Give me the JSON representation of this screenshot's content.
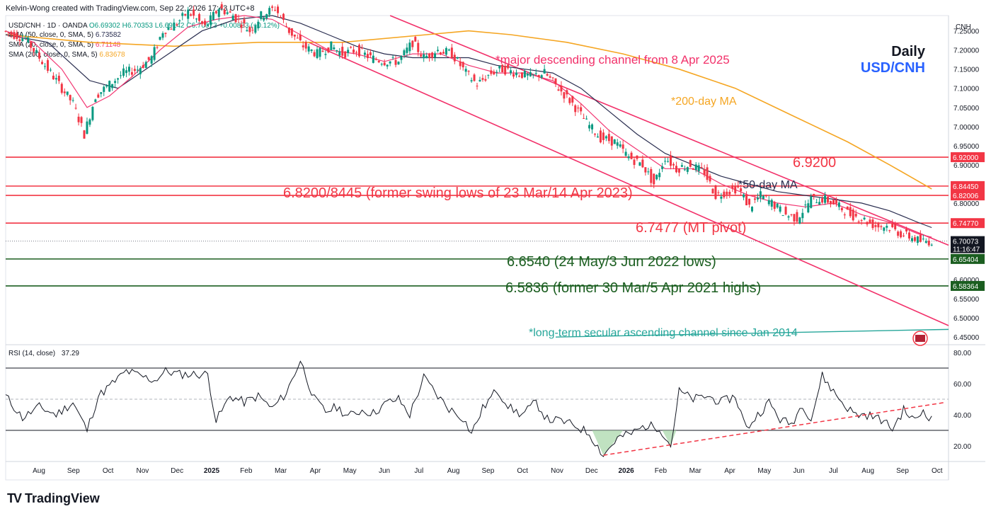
{
  "header": {
    "attribution": "Kelvin-Wong created with TradingView.com, Sep 22, 2026 17:43 UTC+8"
  },
  "legend": {
    "symbol": "USD/CNH · 1D · OANDA",
    "ohlc": "O6.69302 H6.70353 L6.69142 C6.70073 +0.00833 (+0.12%)",
    "sma50": {
      "label": "SMA (50, close, 0, SMA, 5)",
      "value": "6.73582"
    },
    "sma20": {
      "label": "SMA (20, close, 0, SMA, 5)",
      "value": "6.71148"
    },
    "sma200": {
      "label": "SMA (200, close, 0, SMA, 5)",
      "value": "6.83678"
    },
    "rsi": {
      "label": "RSI (14, close)",
      "value": "37.29"
    }
  },
  "title": {
    "timeframe": "Daily",
    "pair": "USD/CNH"
  },
  "axis": {
    "currency": "CNH"
  },
  "colors": {
    "price_up": "#089981",
    "price_down": "#f23645",
    "sma20": "#f23672",
    "sma50": "#2a2e50",
    "sma200": "#f5a623",
    "resistance": "#f23645",
    "support": "#1b5e20",
    "channel": "#f2316a",
    "secular": "#26a69a",
    "rsi_line": "#131722",
    "title_pair": "#2962ff"
  },
  "annotations": {
    "channel": "*major descending channel from 8 Apr 2025",
    "ma200": "*200-day MA",
    "ma50": "*50-day MA",
    "level_6920": "6.9200",
    "level_6820": "6.8200/8445 (former swing lows of 23 Mar/14 Apr 2023)",
    "level_6747": "6.7477 (MT pivot)",
    "level_6654": "6.6540 (24 May/3 Jun 2022 lows)",
    "level_6583": "6.5836 (former 30 Mar/5 Apr 2021 highs)",
    "secular": "*long-term secular ascending channel since Jan 2014"
  },
  "chart_data": {
    "type": "candlestick",
    "ylim": [
      6.43,
      7.29
    ],
    "y_ticks": [
      "7.25000",
      "7.20000",
      "7.15000",
      "7.10000",
      "7.05000",
      "7.00000",
      "6.95000",
      "6.90000",
      "6.85000",
      "6.80000",
      "6.75000",
      "6.70000",
      "6.65000",
      "6.60000",
      "6.55000",
      "6.50000",
      "6.45000"
    ],
    "x_ticks": [
      "Aug",
      "Sep",
      "Oct",
      "Nov",
      "Dec",
      "2025",
      "Feb",
      "Mar",
      "Apr",
      "May",
      "Jun",
      "Jul",
      "Aug",
      "Sep",
      "Oct",
      "Nov",
      "Dec",
      "2026",
      "Feb",
      "Mar",
      "Apr",
      "May",
      "Jun",
      "Jul",
      "Aug",
      "Sep",
      "Oct"
    ],
    "price_path": [
      [
        0,
        7.25
      ],
      [
        8,
        7.23
      ],
      [
        14,
        7.17
      ],
      [
        19,
        7.12
      ],
      [
        25,
        7.06
      ],
      [
        29,
        6.98
      ],
      [
        33,
        7.08
      ],
      [
        38,
        7.11
      ],
      [
        43,
        7.14
      ],
      [
        48,
        7.15
      ],
      [
        53,
        7.18
      ],
      [
        57,
        7.25
      ],
      [
        62,
        7.27
      ],
      [
        66,
        7.3
      ],
      [
        72,
        7.26
      ],
      [
        77,
        7.31
      ],
      [
        82,
        7.29
      ],
      [
        88,
        7.25
      ],
      [
        92,
        7.29
      ],
      [
        97,
        7.31
      ],
      [
        102,
        7.25
      ],
      [
        107,
        7.21
      ],
      [
        112,
        7.19
      ],
      [
        117,
        7.21
      ],
      [
        121,
        7.19
      ],
      [
        126,
        7.2
      ],
      [
        131,
        7.18
      ],
      [
        136,
        7.17
      ],
      [
        141,
        7.17
      ],
      [
        146,
        7.22
      ],
      [
        150,
        7.18
      ],
      [
        155,
        7.2
      ],
      [
        160,
        7.19
      ],
      [
        165,
        7.14
      ],
      [
        169,
        7.11
      ],
      [
        174,
        7.14
      ],
      [
        178,
        7.15
      ],
      [
        183,
        7.14
      ],
      [
        188,
        7.13
      ],
      [
        193,
        7.14
      ],
      [
        198,
        7.1
      ],
      [
        203,
        7.06
      ],
      [
        208,
        7.01
      ],
      [
        213,
        6.97
      ],
      [
        218,
        6.96
      ],
      [
        223,
        6.92
      ],
      [
        228,
        6.9
      ],
      [
        232,
        6.85
      ],
      [
        236,
        6.92
      ],
      [
        240,
        6.89
      ],
      [
        245,
        6.9
      ],
      [
        250,
        6.88
      ],
      [
        254,
        6.82
      ],
      [
        258,
        6.83
      ],
      [
        262,
        6.84
      ],
      [
        266,
        6.79
      ],
      [
        270,
        6.82
      ],
      [
        274,
        6.8
      ],
      [
        279,
        6.77
      ],
      [
        283,
        6.76
      ],
      [
        288,
        6.81
      ],
      [
        293,
        6.81
      ],
      [
        298,
        6.79
      ],
      [
        302,
        6.77
      ],
      [
        306,
        6.76
      ],
      [
        311,
        6.74
      ],
      [
        315,
        6.74
      ],
      [
        320,
        6.72
      ],
      [
        324,
        6.71
      ],
      [
        327,
        6.7
      ],
      [
        330,
        6.7
      ]
    ],
    "sma20_path": [
      [
        0,
        7.25
      ],
      [
        10,
        7.22
      ],
      [
        20,
        7.15
      ],
      [
        29,
        7.05
      ],
      [
        37,
        7.08
      ],
      [
        45,
        7.13
      ],
      [
        55,
        7.2
      ],
      [
        65,
        7.26
      ],
      [
        75,
        7.28
      ],
      [
        85,
        7.29
      ],
      [
        95,
        7.28
      ],
      [
        105,
        7.24
      ],
      [
        115,
        7.2
      ],
      [
        125,
        7.19
      ],
      [
        135,
        7.17
      ],
      [
        145,
        7.19
      ],
      [
        155,
        7.19
      ],
      [
        165,
        7.16
      ],
      [
        175,
        7.14
      ],
      [
        185,
        7.14
      ],
      [
        195,
        7.12
      ],
      [
        205,
        7.06
      ],
      [
        215,
        6.99
      ],
      [
        225,
        6.94
      ],
      [
        235,
        6.89
      ],
      [
        245,
        6.89
      ],
      [
        255,
        6.85
      ],
      [
        265,
        6.82
      ],
      [
        275,
        6.8
      ],
      [
        285,
        6.79
      ],
      [
        295,
        6.8
      ],
      [
        305,
        6.77
      ],
      [
        315,
        6.75
      ],
      [
        325,
        6.72
      ],
      [
        330,
        6.711
      ]
    ],
    "sma50_path": [
      [
        0,
        7.24
      ],
      [
        15,
        7.22
      ],
      [
        30,
        7.12
      ],
      [
        40,
        7.1
      ],
      [
        50,
        7.15
      ],
      [
        60,
        7.2
      ],
      [
        70,
        7.25
      ],
      [
        82,
        7.28
      ],
      [
        95,
        7.29
      ],
      [
        105,
        7.27
      ],
      [
        115,
        7.24
      ],
      [
        125,
        7.21
      ],
      [
        135,
        7.19
      ],
      [
        145,
        7.18
      ],
      [
        155,
        7.18
      ],
      [
        165,
        7.18
      ],
      [
        175,
        7.16
      ],
      [
        185,
        7.15
      ],
      [
        195,
        7.14
      ],
      [
        205,
        7.1
      ],
      [
        215,
        7.04
      ],
      [
        225,
        6.98
      ],
      [
        235,
        6.93
      ],
      [
        245,
        6.9
      ],
      [
        255,
        6.87
      ],
      [
        265,
        6.85
      ],
      [
        275,
        6.83
      ],
      [
        285,
        6.82
      ],
      [
        295,
        6.81
      ],
      [
        305,
        6.8
      ],
      [
        315,
        6.78
      ],
      [
        325,
        6.75
      ],
      [
        330,
        6.736
      ]
    ],
    "sma200_path": [
      [
        0,
        7.24
      ],
      [
        30,
        7.22
      ],
      [
        60,
        7.21
      ],
      [
        90,
        7.22
      ],
      [
        120,
        7.22
      ],
      [
        150,
        7.24
      ],
      [
        165,
        7.25
      ],
      [
        180,
        7.24
      ],
      [
        200,
        7.22
      ],
      [
        220,
        7.19
      ],
      [
        240,
        7.15
      ],
      [
        260,
        7.1
      ],
      [
        280,
        7.03
      ],
      [
        300,
        6.96
      ],
      [
        315,
        6.9
      ],
      [
        330,
        6.837
      ]
    ],
    "levels": [
      {
        "value": 6.92,
        "label": "6.92000",
        "kind": "resistance"
      },
      {
        "value": 6.8445,
        "label": "6.84450",
        "kind": "resistance"
      },
      {
        "value": 6.82006,
        "label": "6.82006",
        "kind": "resistance"
      },
      {
        "value": 6.7477,
        "label": "6.74770",
        "kind": "resistance"
      },
      {
        "value": 6.654,
        "label": "6.65404",
        "kind": "support"
      },
      {
        "value": 6.5836,
        "label": "6.58364",
        "kind": "support"
      }
    ],
    "current_price": {
      "value": 6.70073,
      "label": "6.70073",
      "countdown": "11:16:47"
    },
    "rsi": {
      "ylim": [
        10,
        85
      ],
      "y_ticks": [
        "80.00",
        "60.00",
        "40.00",
        "20.00"
      ],
      "levels": [
        70,
        50,
        30
      ],
      "current": 37.29,
      "path": [
        [
          0,
          52
        ],
        [
          6,
          38
        ],
        [
          12,
          45
        ],
        [
          18,
          40
        ],
        [
          24,
          48
        ],
        [
          29,
          30
        ],
        [
          33,
          52
        ],
        [
          38,
          60
        ],
        [
          43,
          68
        ],
        [
          48,
          65
        ],
        [
          53,
          62
        ],
        [
          57,
          68
        ],
        [
          62,
          66
        ],
        [
          67,
          66
        ],
        [
          72,
          66
        ],
        [
          75,
          36
        ],
        [
          80,
          52
        ],
        [
          85,
          48
        ],
        [
          90,
          52
        ],
        [
          95,
          44
        ],
        [
          100,
          54
        ],
        [
          105,
          75
        ],
        [
          110,
          50
        ],
        [
          114,
          42
        ],
        [
          118,
          45
        ],
        [
          122,
          39
        ],
        [
          127,
          43
        ],
        [
          131,
          41
        ],
        [
          136,
          48
        ],
        [
          140,
          50
        ],
        [
          144,
          40
        ],
        [
          149,
          64
        ],
        [
          154,
          52
        ],
        [
          158,
          44
        ],
        [
          163,
          38
        ],
        [
          166,
          28
        ],
        [
          170,
          44
        ],
        [
          175,
          56
        ],
        [
          180,
          44
        ],
        [
          184,
          40
        ],
        [
          189,
          48
        ],
        [
          193,
          37
        ],
        [
          198,
          36
        ],
        [
          203,
          33
        ],
        [
          208,
          28
        ],
        [
          213,
          14
        ],
        [
          218,
          25
        ],
        [
          223,
          28
        ],
        [
          228,
          33
        ],
        [
          233,
          32
        ],
        [
          237,
          20
        ],
        [
          240,
          55
        ],
        [
          245,
          50
        ],
        [
          250,
          52
        ],
        [
          255,
          48
        ],
        [
          260,
          52
        ],
        [
          264,
          31
        ],
        [
          268,
          40
        ],
        [
          272,
          48
        ],
        [
          276,
          37
        ],
        [
          280,
          34
        ],
        [
          284,
          47
        ],
        [
          287,
          37
        ],
        [
          291,
          65
        ],
        [
          295,
          55
        ],
        [
          299,
          46
        ],
        [
          303,
          40
        ],
        [
          307,
          40
        ],
        [
          312,
          37
        ],
        [
          316,
          31
        ],
        [
          320,
          43
        ],
        [
          324,
          36
        ],
        [
          327,
          43
        ],
        [
          330,
          37
        ]
      ],
      "trendline": {
        "from": [
          213,
          14
        ],
        "to": [
          335,
          48
        ]
      }
    }
  }
}
